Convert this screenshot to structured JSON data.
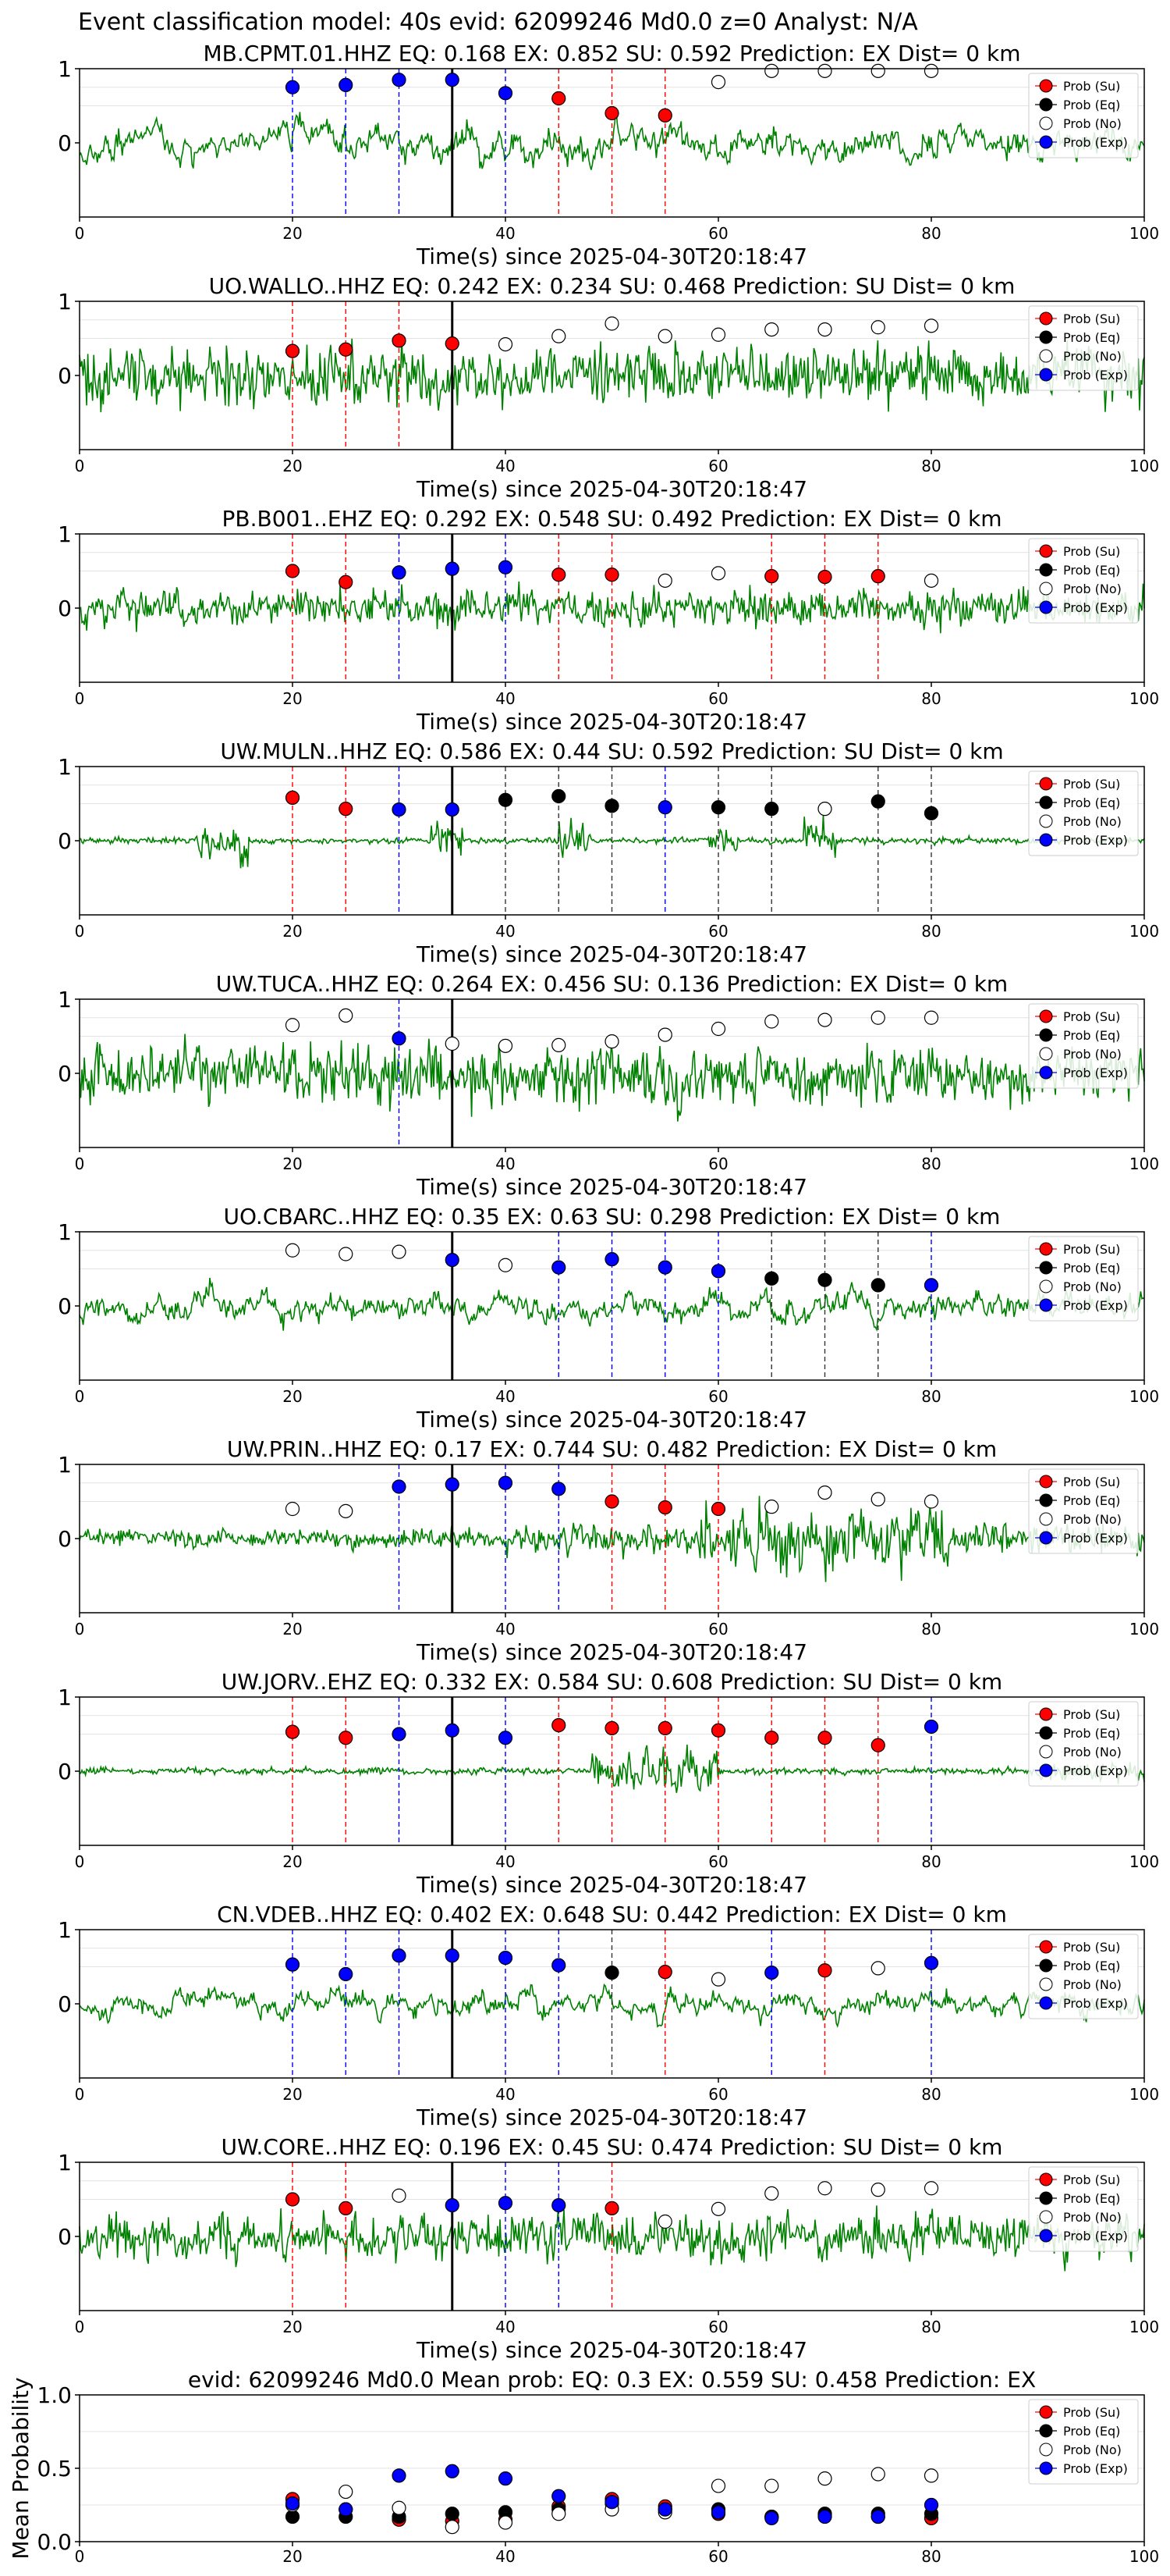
{
  "suptitle": "Event classification model: 40s evid: 62099246 Md0.0 z=0 Analyst: N/A",
  "chart_data": [
    {
      "type": "line",
      "title": "MB.CPMT.01.HHZ   EQ: 0.168  EX: 0.852  SU: 0.592   Prediction: EX    Dist= 0 km",
      "xlabel": "Time(s) since 2025-04-30T20:18:47",
      "xlim": [
        0,
        100
      ],
      "ylim": [
        -1,
        1
      ],
      "x_ticks": [
        "0",
        "20",
        "40",
        "60",
        "80",
        "100"
      ],
      "y_ticks": [
        "1",
        "0"
      ],
      "probs": {
        "t": [
          20,
          25,
          30,
          35,
          40,
          45,
          50,
          55,
          60,
          65,
          70,
          75,
          80
        ],
        "class": [
          "Exp",
          "Exp",
          "Exp",
          "Exp",
          "Exp",
          "Su",
          "Su",
          "Su",
          "No",
          "No",
          "No",
          "No",
          "No"
        ],
        "value": [
          0.75,
          0.78,
          0.85,
          0.85,
          0.67,
          0.6,
          0.4,
          0.37,
          0.82,
          0.97,
          0.97,
          0.97,
          0.97
        ]
      },
      "trace": {
        "seed": 11,
        "amp": 0.72,
        "style": "smooth"
      }
    },
    {
      "type": "line",
      "title": "UO.WALLO..HHZ   EQ: 0.242  EX: 0.234  SU: 0.468   Prediction: SU    Dist= 0 km",
      "xlabel": "Time(s) since 2025-04-30T20:18:47",
      "xlim": [
        0,
        100
      ],
      "ylim": [
        -1,
        1
      ],
      "x_ticks": [
        "0",
        "20",
        "40",
        "60",
        "80",
        "100"
      ],
      "y_ticks": [
        "1",
        "0"
      ],
      "probs": {
        "t": [
          20,
          25,
          30,
          35,
          40,
          45,
          50,
          55,
          60,
          65,
          70,
          75,
          80
        ],
        "class": [
          "Su",
          "Su",
          "Su",
          "Su",
          "No",
          "No",
          "No",
          "No",
          "No",
          "No",
          "No",
          "No",
          "No"
        ],
        "value": [
          0.33,
          0.35,
          0.47,
          0.43,
          0.42,
          0.53,
          0.7,
          0.53,
          0.55,
          0.62,
          0.62,
          0.65,
          0.67
        ]
      },
      "trace": {
        "seed": 22,
        "amp": 0.7,
        "style": "noisy"
      }
    },
    {
      "type": "line",
      "title": "PB.B001..EHZ   EQ: 0.292  EX: 0.548  SU: 0.492   Prediction: EX    Dist= 0 km",
      "xlabel": "Time(s) since 2025-04-30T20:18:47",
      "xlim": [
        0,
        100
      ],
      "ylim": [
        -1,
        1
      ],
      "x_ticks": [
        "0",
        "20",
        "40",
        "60",
        "80",
        "100"
      ],
      "y_ticks": [
        "1",
        "0"
      ],
      "probs": {
        "t": [
          20,
          25,
          30,
          35,
          40,
          45,
          50,
          55,
          60,
          65,
          70,
          75,
          80
        ],
        "class": [
          "Su",
          "Su",
          "Exp",
          "Exp",
          "Exp",
          "Su",
          "Su",
          "No",
          "No",
          "Su",
          "Su",
          "Su",
          "No"
        ],
        "value": [
          0.5,
          0.35,
          0.48,
          0.53,
          0.55,
          0.45,
          0.45,
          0.37,
          0.47,
          0.43,
          0.42,
          0.43,
          0.37
        ]
      },
      "trace": {
        "seed": 33,
        "amp": 0.45,
        "style": "noisy"
      }
    },
    {
      "type": "line",
      "title": "UW.MULN..HHZ   EQ: 0.586  EX: 0.44  SU: 0.592   Prediction: SU    Dist= 0 km",
      "xlabel": "Time(s) since 2025-04-30T20:18:47",
      "xlim": [
        0,
        100
      ],
      "ylim": [
        -1,
        1
      ],
      "x_ticks": [
        "0",
        "20",
        "40",
        "60",
        "80",
        "100"
      ],
      "y_ticks": [
        "1",
        "0"
      ],
      "probs": {
        "t": [
          20,
          25,
          30,
          35,
          40,
          45,
          50,
          55,
          60,
          65,
          70,
          75,
          80
        ],
        "class": [
          "Su",
          "Su",
          "Exp",
          "Exp",
          "Eq",
          "Eq",
          "Eq",
          "Exp",
          "Eq",
          "Eq",
          "No",
          "Eq",
          "Eq"
        ],
        "value": [
          0.58,
          0.43,
          0.42,
          0.42,
          0.55,
          0.6,
          0.47,
          0.45,
          0.45,
          0.43,
          0.43,
          0.53,
          0.37
        ]
      },
      "trace": {
        "seed": 44,
        "amp": 0.3,
        "style": "bursts"
      }
    },
    {
      "type": "line",
      "title": "UW.TUCA..HHZ   EQ: 0.264  EX: 0.456  SU: 0.136   Prediction: EX    Dist= 0 km",
      "xlabel": "Time(s) since 2025-04-30T20:18:47",
      "xlim": [
        0,
        100
      ],
      "ylim": [
        -1,
        1
      ],
      "x_ticks": [
        "0",
        "20",
        "40",
        "60",
        "80",
        "100"
      ],
      "y_ticks": [
        "1",
        "0"
      ],
      "probs": {
        "t": [
          20,
          25,
          30,
          35,
          40,
          45,
          50,
          55,
          60,
          65,
          70,
          75,
          80
        ],
        "class": [
          "No",
          "No",
          "Exp",
          "No",
          "No",
          "No",
          "No",
          "No",
          "No",
          "No",
          "No",
          "No",
          "No"
        ],
        "value": [
          0.65,
          0.78,
          0.47,
          0.4,
          0.37,
          0.38,
          0.43,
          0.52,
          0.6,
          0.7,
          0.72,
          0.75,
          0.75
        ]
      },
      "trace": {
        "seed": 55,
        "amp": 0.72,
        "style": "noisy"
      }
    },
    {
      "type": "line",
      "title": "UO.CBARC..HHZ   EQ: 0.35  EX: 0.63  SU: 0.298   Prediction: EX    Dist= 0 km",
      "xlabel": "Time(s) since 2025-04-30T20:18:47",
      "xlim": [
        0,
        100
      ],
      "ylim": [
        -1,
        1
      ],
      "x_ticks": [
        "0",
        "20",
        "40",
        "60",
        "80",
        "100"
      ],
      "y_ticks": [
        "1",
        "0"
      ],
      "probs": {
        "t": [
          20,
          25,
          30,
          35,
          40,
          45,
          50,
          55,
          60,
          65,
          70,
          75,
          80
        ],
        "class": [
          "No",
          "No",
          "No",
          "Exp",
          "No",
          "Exp",
          "Exp",
          "Exp",
          "Exp",
          "Eq",
          "Eq",
          "Eq",
          "Exp"
        ],
        "value": [
          0.75,
          0.7,
          0.73,
          0.62,
          0.55,
          0.52,
          0.63,
          0.52,
          0.47,
          0.37,
          0.35,
          0.28,
          0.28
        ]
      },
      "trace": {
        "seed": 66,
        "amp": 0.65,
        "style": "smooth"
      }
    },
    {
      "type": "line",
      "title": "UW.PRIN..HHZ   EQ: 0.17  EX: 0.744  SU: 0.482   Prediction: EX    Dist= 0 km",
      "xlabel": "Time(s) since 2025-04-30T20:18:47",
      "xlim": [
        0,
        100
      ],
      "ylim": [
        -1,
        1
      ],
      "x_ticks": [
        "0",
        "20",
        "40",
        "60",
        "80",
        "100"
      ],
      "y_ticks": [
        "1",
        "0"
      ],
      "probs": {
        "t": [
          20,
          25,
          30,
          35,
          40,
          45,
          50,
          55,
          60,
          65,
          70,
          75,
          80
        ],
        "class": [
          "No",
          "No",
          "Exp",
          "Exp",
          "Exp",
          "Exp",
          "Su",
          "Su",
          "Su",
          "No",
          "No",
          "No",
          "No"
        ],
        "value": [
          0.4,
          0.37,
          0.7,
          0.73,
          0.75,
          0.67,
          0.5,
          0.42,
          0.4,
          0.43,
          0.62,
          0.53,
          0.5
        ]
      },
      "trace": {
        "seed": 77,
        "amp": 0.4,
        "style": "late"
      }
    },
    {
      "type": "line",
      "title": "UW.JORV..EHZ   EQ: 0.332  EX: 0.584  SU: 0.608   Prediction: SU    Dist= 0 km",
      "xlabel": "Time(s) since 2025-04-30T20:18:47",
      "xlim": [
        0,
        100
      ],
      "ylim": [
        -1,
        1
      ],
      "x_ticks": [
        "0",
        "20",
        "40",
        "60",
        "80",
        "100"
      ],
      "y_ticks": [
        "1",
        "0"
      ],
      "probs": {
        "t": [
          20,
          25,
          30,
          35,
          40,
          45,
          50,
          55,
          60,
          65,
          70,
          75,
          80
        ],
        "class": [
          "Su",
          "Su",
          "Exp",
          "Exp",
          "Exp",
          "Su",
          "Su",
          "Su",
          "Su",
          "Su",
          "Su",
          "Su",
          "Exp"
        ],
        "value": [
          0.53,
          0.45,
          0.5,
          0.55,
          0.45,
          0.62,
          0.58,
          0.58,
          0.55,
          0.45,
          0.45,
          0.35,
          0.6
        ]
      },
      "trace": {
        "seed": 88,
        "amp": 0.1,
        "style": "mid"
      }
    },
    {
      "type": "line",
      "title": "CN.VDEB..HHZ   EQ: 0.402  EX: 0.648  SU: 0.442   Prediction: EX    Dist= 0 km",
      "xlabel": "Time(s) since 2025-04-30T20:18:47",
      "xlim": [
        0,
        100
      ],
      "ylim": [
        -1,
        1
      ],
      "x_ticks": [
        "0",
        "20",
        "40",
        "60",
        "80",
        "100"
      ],
      "y_ticks": [
        "1",
        "0"
      ],
      "probs": {
        "t": [
          20,
          25,
          30,
          35,
          40,
          45,
          50,
          55,
          60,
          65,
          70,
          75,
          80
        ],
        "class": [
          "Exp",
          "Exp",
          "Exp",
          "Exp",
          "Exp",
          "Exp",
          "Eq",
          "Su",
          "No",
          "Exp",
          "Su",
          "No",
          "Exp"
        ],
        "value": [
          0.53,
          0.4,
          0.65,
          0.65,
          0.62,
          0.52,
          0.42,
          0.43,
          0.33,
          0.42,
          0.45,
          0.48,
          0.55
        ]
      },
      "trace": {
        "seed": 99,
        "amp": 0.55,
        "style": "smooth"
      }
    },
    {
      "type": "line",
      "title": "UW.CORE..HHZ   EQ: 0.196  EX: 0.45  SU: 0.474   Prediction: SU    Dist= 0 km",
      "xlabel": "Time(s) since 2025-04-30T20:18:47",
      "xlim": [
        0,
        100
      ],
      "ylim": [
        -1,
        1
      ],
      "x_ticks": [
        "0",
        "20",
        "40",
        "60",
        "80",
        "100"
      ],
      "y_ticks": [
        "1",
        "0"
      ],
      "probs": {
        "t": [
          20,
          25,
          30,
          35,
          40,
          45,
          50,
          55,
          60,
          65,
          70,
          75,
          80
        ],
        "class": [
          "Su",
          "Su",
          "No",
          "Exp",
          "Exp",
          "Exp",
          "Su",
          "No",
          "No",
          "No",
          "No",
          "No",
          "No"
        ],
        "value": [
          0.5,
          0.38,
          0.55,
          0.42,
          0.45,
          0.42,
          0.38,
          0.2,
          0.37,
          0.58,
          0.65,
          0.63,
          0.65
        ]
      },
      "trace": {
        "seed": 111,
        "amp": 0.55,
        "style": "noisy"
      }
    },
    {
      "type": "scatter",
      "title": "evid: 62099246  Md0.0   Mean prob:   EQ: 0.3  EX: 0.559  SU: 0.458   Prediction: EX",
      "ylabel": "Mean Probability",
      "xlim": [
        0,
        100
      ],
      "ylim": [
        0,
        1
      ],
      "x_ticks": [
        "0",
        "20",
        "40",
        "60",
        "80",
        "100"
      ],
      "y_ticks": [
        "1.0",
        "0.5",
        "0.0"
      ],
      "series": [
        {
          "name": "Prob (Su)",
          "x": [
            20,
            25,
            30,
            35,
            40,
            45,
            50,
            55,
            60,
            65,
            70,
            75,
            80
          ],
          "values": [
            0.29,
            0.22,
            0.15,
            0.14,
            0.15,
            0.24,
            0.29,
            0.24,
            0.19,
            0.17,
            0.18,
            0.17,
            0.16
          ]
        },
        {
          "name": "Prob (Eq)",
          "x": [
            20,
            25,
            30,
            35,
            40,
            45,
            50,
            55,
            60,
            65,
            70,
            75,
            80
          ],
          "values": [
            0.17,
            0.17,
            0.17,
            0.19,
            0.2,
            0.22,
            0.26,
            0.22,
            0.22,
            0.17,
            0.19,
            0.19,
            0.19
          ]
        },
        {
          "name": "Prob (No)",
          "x": [
            20,
            25,
            30,
            35,
            40,
            45,
            50,
            55,
            60,
            65,
            70,
            75,
            80
          ],
          "values": [
            0.25,
            0.34,
            0.23,
            0.1,
            0.13,
            0.19,
            0.22,
            0.2,
            0.38,
            0.38,
            0.43,
            0.46,
            0.45
          ]
        },
        {
          "name": "Prob (Exp)",
          "x": [
            20,
            25,
            30,
            35,
            40,
            45,
            50,
            55,
            60,
            65,
            70,
            75,
            80
          ],
          "values": [
            0.26,
            0.22,
            0.45,
            0.48,
            0.43,
            0.31,
            0.27,
            0.22,
            0.2,
            0.16,
            0.17,
            0.17,
            0.25
          ]
        }
      ]
    }
  ],
  "legend": [
    "Prob (Su)",
    "Prob (Eq)",
    "Prob (No)",
    "Prob (Exp)"
  ],
  "colors": {
    "Su": "#ff0000",
    "Eq": "#000000",
    "No": "#ffffff",
    "Exp": "#0000ff",
    "trace": "#008000",
    "line_Su": "#ff0000",
    "line_Eq": "#333333",
    "line_Exp": "#0000ff",
    "onset": "#000000"
  },
  "onset_time": 35
}
